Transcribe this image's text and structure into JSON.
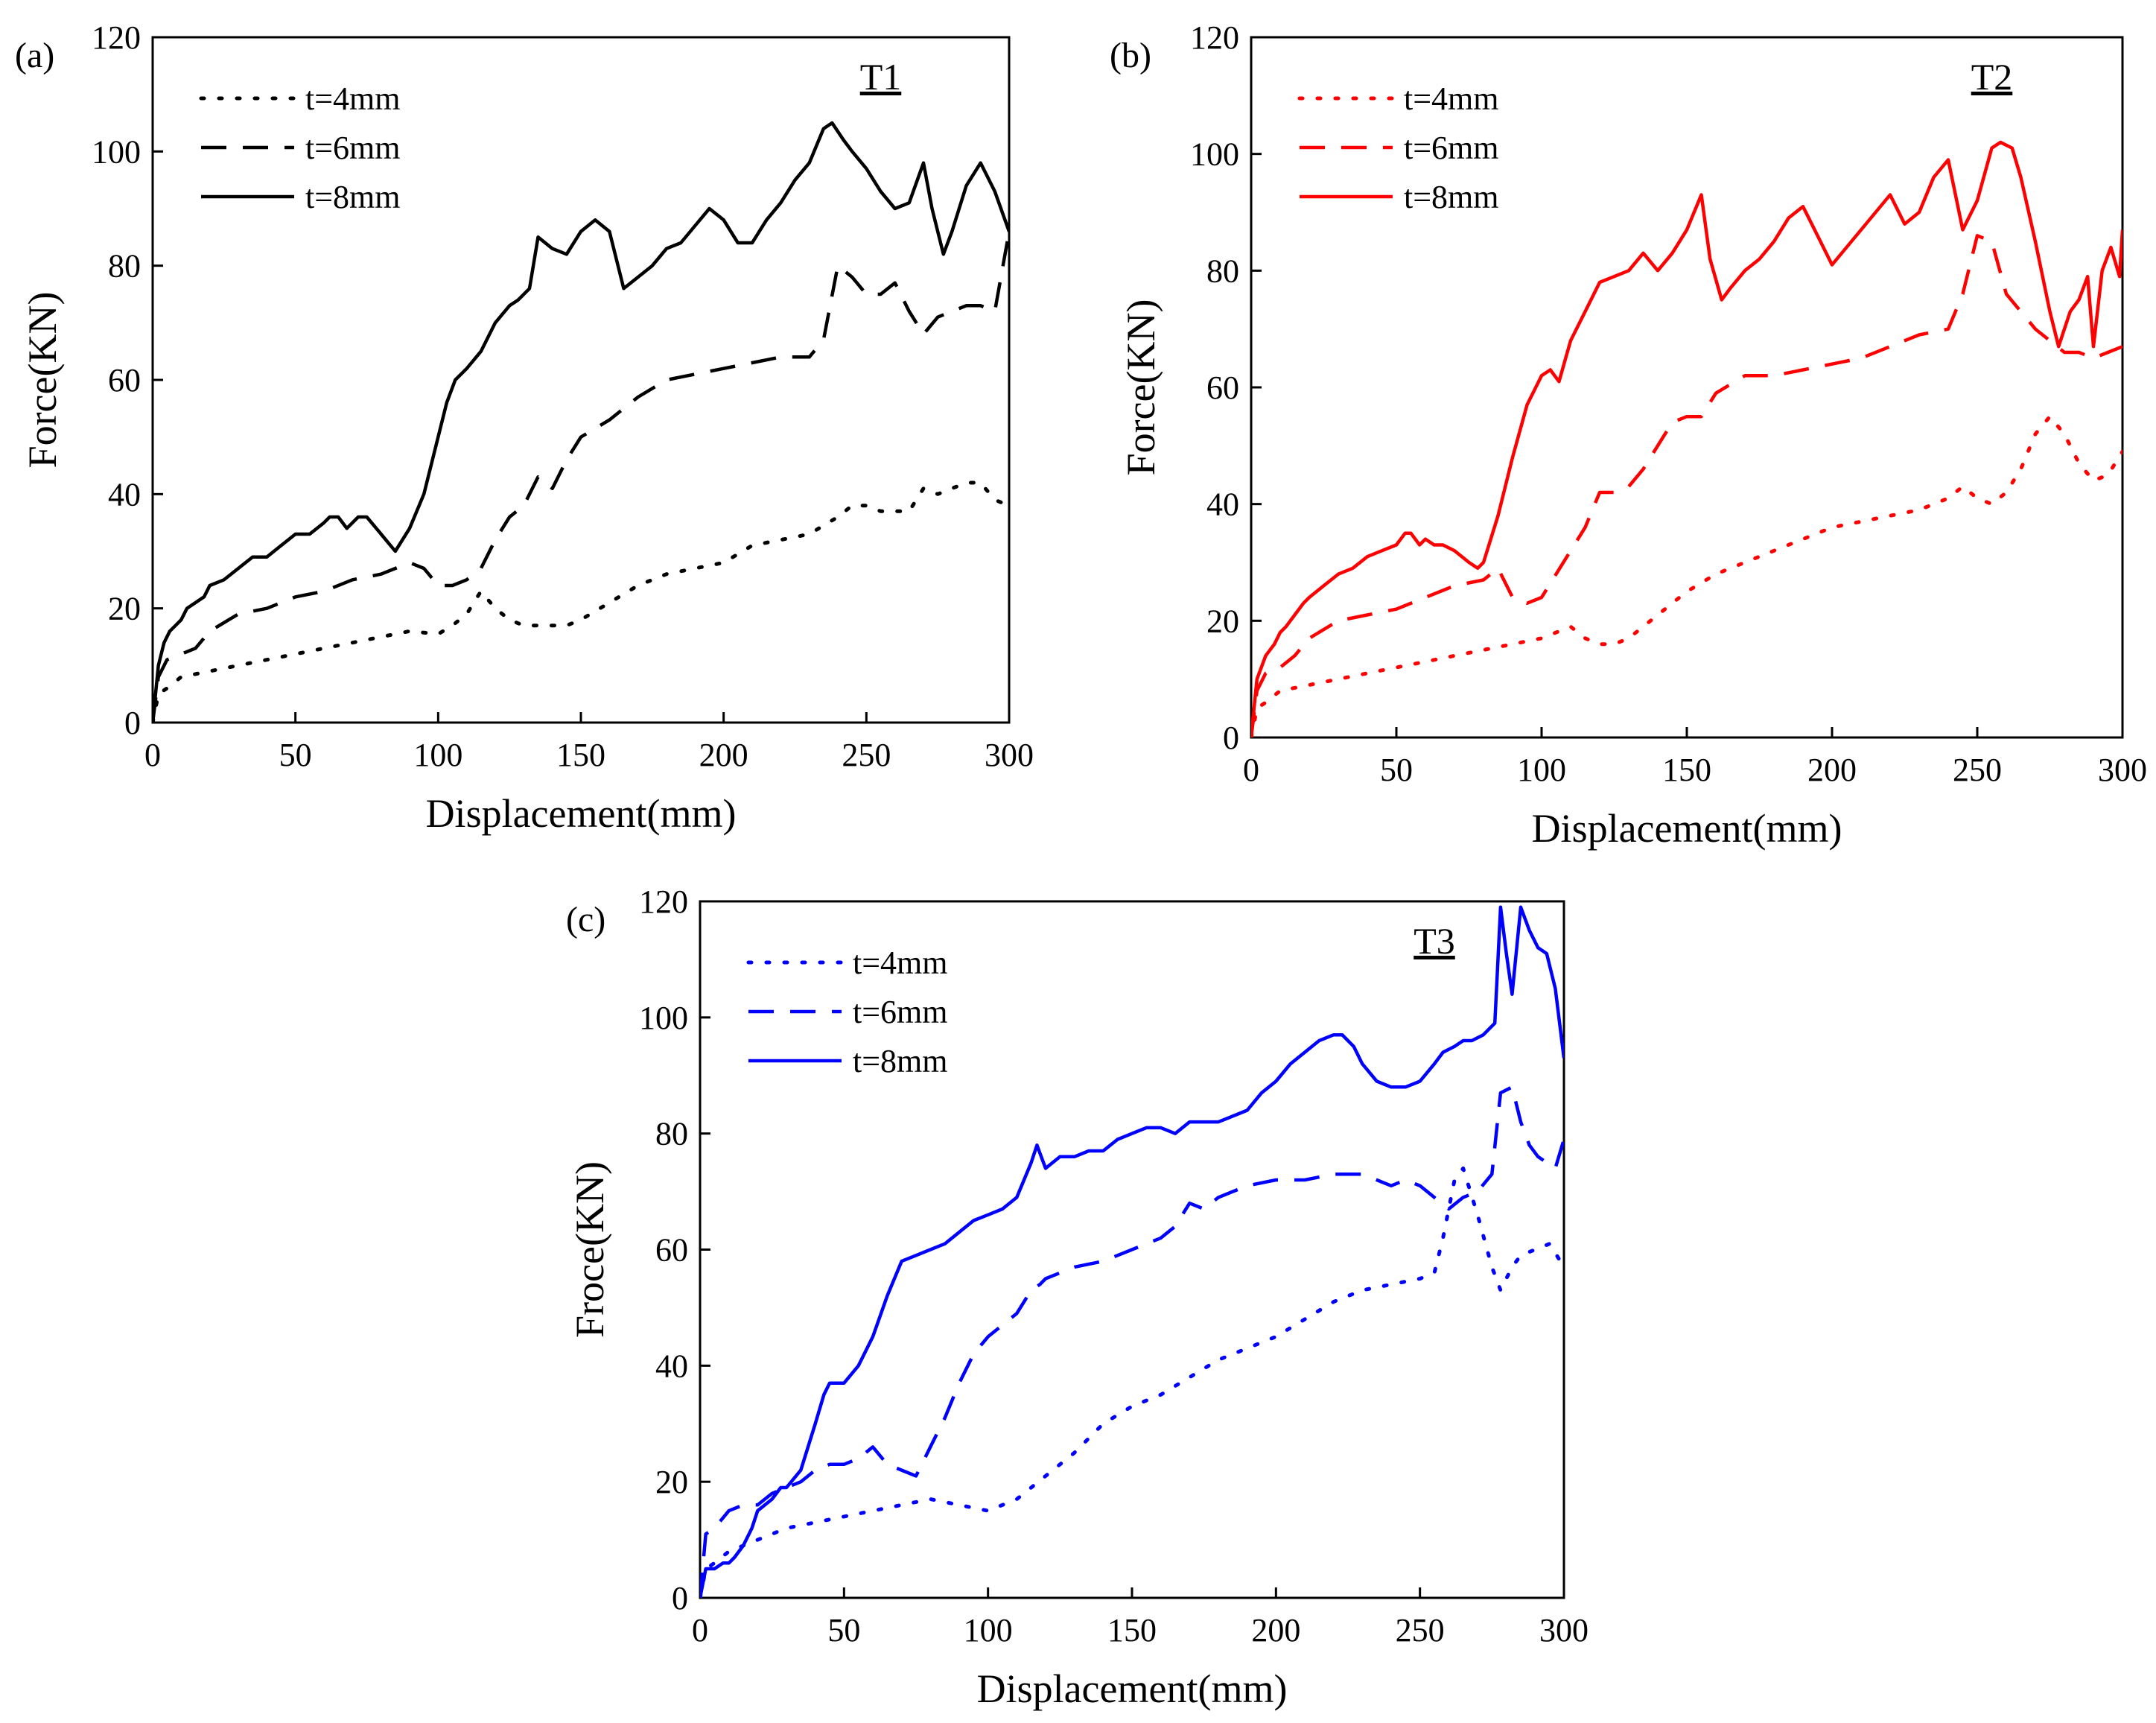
{
  "figure": {
    "legend_entries": [
      "t=4mm",
      "t=6mm",
      "t=8mm"
    ]
  },
  "chart_data": [
    {
      "type": "line",
      "panel_label": "(a)",
      "title": "T1",
      "xlabel": "Displacement(mm)",
      "ylabel": "Force(KN)",
      "xlim": [
        0,
        300
      ],
      "ylim": [
        0,
        120
      ],
      "xticks": [
        0,
        50,
        100,
        150,
        200,
        250,
        300
      ],
      "yticks": [
        0,
        20,
        40,
        60,
        80,
        100,
        120
      ],
      "color": "#000000",
      "series": [
        {
          "name": "t=4mm",
          "style": "dotted",
          "x": [
            0,
            2,
            5,
            10,
            20,
            30,
            40,
            50,
            60,
            70,
            80,
            90,
            100,
            105,
            110,
            115,
            120,
            125,
            130,
            135,
            140,
            145,
            150,
            160,
            170,
            180,
            190,
            200,
            210,
            220,
            230,
            240,
            245,
            250,
            255,
            260,
            265,
            270,
            275,
            280,
            285,
            290,
            295,
            300
          ],
          "y": [
            0,
            5,
            6,
            8,
            9,
            10,
            11,
            12,
            13,
            14,
            15,
            16,
            15.5,
            17,
            19,
            23,
            20,
            18,
            17,
            17,
            17,
            17,
            18,
            21,
            24,
            26,
            27,
            28,
            31,
            32,
            33,
            36,
            38,
            38,
            37,
            37,
            37,
            41,
            40,
            41,
            42,
            42,
            39,
            38
          ]
        },
        {
          "name": "t=6mm",
          "style": "dashed",
          "x": [
            0,
            2,
            5,
            10,
            15,
            20,
            30,
            40,
            50,
            60,
            70,
            80,
            90,
            95,
            100,
            105,
            110,
            115,
            120,
            125,
            130,
            135,
            140,
            145,
            150,
            160,
            170,
            180,
            190,
            200,
            210,
            220,
            230,
            235,
            240,
            245,
            250,
            255,
            260,
            265,
            270,
            275,
            280,
            285,
            290,
            295,
            300
          ],
          "y": [
            0,
            8,
            11,
            12,
            13,
            16,
            19,
            20,
            22,
            23,
            25,
            26,
            28,
            27,
            24,
            24,
            25,
            27,
            32,
            36,
            38,
            43,
            41,
            46,
            50,
            53,
            57,
            60,
            61,
            62,
            63,
            64,
            64,
            67,
            80,
            78,
            75,
            75,
            77,
            72,
            68,
            71,
            72,
            73,
            73,
            72,
            86
          ]
        },
        {
          "name": "t=8mm",
          "style": "solid",
          "x": [
            0,
            2,
            4,
            6,
            8,
            10,
            12,
            15,
            18,
            20,
            25,
            30,
            35,
            40,
            45,
            50,
            55,
            60,
            62,
            65,
            68,
            72,
            75,
            80,
            85,
            90,
            95,
            100,
            103,
            106,
            110,
            115,
            120,
            125,
            128,
            132,
            135,
            140,
            145,
            150,
            155,
            160,
            165,
            170,
            175,
            180,
            185,
            190,
            195,
            200,
            205,
            210,
            215,
            220,
            225,
            230,
            235,
            238,
            242,
            245,
            250,
            255,
            260,
            265,
            270,
            273,
            277,
            280,
            285,
            290,
            295,
            300
          ],
          "y": [
            0,
            10,
            14,
            16,
            17,
            18,
            20,
            21,
            22,
            24,
            25,
            27,
            29,
            29,
            31,
            33,
            33,
            35,
            36,
            36,
            34,
            36,
            36,
            33,
            30,
            34,
            40,
            50,
            56,
            60,
            62,
            65,
            70,
            73,
            74,
            76,
            85,
            83,
            82,
            86,
            88,
            86,
            76,
            78,
            80,
            83,
            84,
            87,
            90,
            88,
            84,
            84,
            88,
            91,
            95,
            98,
            104,
            105,
            102,
            100,
            97,
            93,
            90,
            91,
            98,
            90,
            82,
            86,
            94,
            98,
            93,
            86
          ]
        }
      ]
    },
    {
      "type": "line",
      "panel_label": "(b)",
      "title": "T2",
      "xlabel": "Displacement(mm)",
      "ylabel": "Force(KN)",
      "xlim": [
        0,
        300
      ],
      "ylim": [
        0,
        120
      ],
      "xticks": [
        0,
        50,
        100,
        150,
        200,
        250,
        300
      ],
      "yticks": [
        0,
        20,
        40,
        60,
        80,
        100,
        120
      ],
      "color": "#ff0000",
      "series": [
        {
          "name": "t=4mm",
          "style": "dotted",
          "x": [
            0,
            2,
            5,
            10,
            20,
            30,
            40,
            50,
            60,
            70,
            80,
            90,
            100,
            110,
            115,
            120,
            125,
            130,
            135,
            140,
            145,
            150,
            160,
            170,
            180,
            190,
            200,
            210,
            220,
            230,
            240,
            245,
            250,
            255,
            260,
            265,
            270,
            275,
            280,
            285,
            290,
            295,
            300
          ],
          "y": [
            0,
            5,
            6,
            8,
            9,
            10,
            11,
            12,
            13,
            14,
            15,
            16,
            17,
            19,
            17,
            16,
            16,
            17,
            19,
            21,
            23,
            25,
            28,
            30,
            32,
            34,
            36,
            37,
            38,
            39,
            41,
            43,
            41,
            40,
            42,
            46,
            52,
            55,
            52,
            47,
            44,
            45,
            49
          ]
        },
        {
          "name": "t=6mm",
          "style": "dashed",
          "x": [
            0,
            2,
            5,
            10,
            15,
            20,
            30,
            40,
            50,
            60,
            70,
            80,
            85,
            90,
            95,
            100,
            105,
            110,
            115,
            120,
            125,
            130,
            135,
            140,
            145,
            150,
            155,
            160,
            170,
            180,
            190,
            200,
            210,
            220,
            230,
            240,
            245,
            250,
            255,
            260,
            265,
            270,
            275,
            280,
            285,
            290,
            295,
            300
          ],
          "y": [
            0,
            8,
            11,
            12,
            14,
            17,
            20,
            21,
            22,
            24,
            26,
            27,
            29,
            24,
            23,
            24,
            28,
            32,
            36,
            42,
            42,
            43,
            46,
            50,
            54,
            55,
            55,
            59,
            62,
            62,
            63,
            64,
            65,
            67,
            69,
            70,
            76,
            86,
            85,
            76,
            73,
            70,
            68,
            66,
            66,
            65,
            66,
            67
          ]
        },
        {
          "name": "t=8mm",
          "style": "solid",
          "x": [
            0,
            2,
            5,
            8,
            10,
            12,
            15,
            18,
            20,
            25,
            30,
            35,
            40,
            45,
            50,
            53,
            55,
            58,
            60,
            63,
            66,
            70,
            75,
            78,
            80,
            85,
            90,
            95,
            100,
            103,
            106,
            110,
            115,
            120,
            125,
            130,
            135,
            140,
            145,
            150,
            155,
            158,
            162,
            165,
            170,
            175,
            180,
            185,
            190,
            195,
            200,
            205,
            210,
            215,
            220,
            225,
            230,
            235,
            240,
            245,
            250,
            255,
            258,
            262,
            265,
            270,
            275,
            278,
            282,
            285,
            288,
            290,
            293,
            296,
            299,
            300
          ],
          "y": [
            0,
            10,
            14,
            16,
            18,
            19,
            21,
            23,
            24,
            26,
            28,
            29,
            31,
            32,
            33,
            35,
            35,
            33,
            34,
            33,
            33,
            32,
            30,
            29,
            30,
            38,
            48,
            57,
            62,
            63,
            61,
            68,
            73,
            78,
            79,
            80,
            83,
            80,
            83,
            87,
            93,
            82,
            75,
            77,
            80,
            82,
            85,
            89,
            91,
            86,
            81,
            84,
            87,
            90,
            93,
            88,
            90,
            96,
            99,
            87,
            92,
            101,
            102,
            101,
            96,
            85,
            73,
            67,
            73,
            75,
            79,
            67,
            80,
            84,
            79,
            87
          ]
        }
      ]
    },
    {
      "type": "line",
      "panel_label": "(c)",
      "title": "T3",
      "xlabel": "Displacement(mm)",
      "ylabel": "Froce(KN)",
      "xlim": [
        0,
        300
      ],
      "ylim": [
        0,
        120
      ],
      "xticks": [
        0,
        50,
        100,
        150,
        200,
        250,
        300
      ],
      "yticks": [
        0,
        20,
        40,
        60,
        80,
        100,
        120
      ],
      "color": "#0000ff",
      "series": [
        {
          "name": "t=4mm",
          "style": "dotted",
          "x": [
            0,
            2,
            5,
            10,
            20,
            30,
            40,
            50,
            60,
            70,
            80,
            90,
            100,
            110,
            120,
            130,
            140,
            150,
            160,
            170,
            180,
            190,
            200,
            210,
            220,
            230,
            240,
            250,
            255,
            258,
            262,
            265,
            270,
            275,
            278,
            282,
            285,
            290,
            295,
            300
          ],
          "y": [
            0,
            5,
            6,
            8,
            10,
            12,
            13,
            14,
            15,
            16,
            17,
            16,
            15,
            17,
            21,
            25,
            30,
            33,
            35,
            38,
            41,
            43,
            45,
            48,
            51,
            53,
            54,
            55,
            56,
            62,
            72,
            74,
            66,
            57,
            53,
            57,
            59,
            60,
            61,
            57
          ]
        },
        {
          "name": "t=6mm",
          "style": "dashed",
          "x": [
            0,
            2,
            5,
            10,
            15,
            20,
            25,
            30,
            35,
            40,
            45,
            50,
            55,
            60,
            65,
            70,
            75,
            80,
            85,
            90,
            95,
            100,
            110,
            115,
            118,
            120,
            125,
            130,
            140,
            150,
            160,
            165,
            170,
            175,
            180,
            190,
            200,
            210,
            220,
            230,
            235,
            240,
            245,
            250,
            255,
            260,
            265,
            270,
            275,
            278,
            282,
            285,
            288,
            291,
            294,
            297,
            300
          ],
          "y": [
            0,
            11,
            12,
            15,
            16,
            16,
            18,
            19,
            20,
            22,
            23,
            23,
            24,
            26,
            23,
            22,
            21,
            26,
            31,
            37,
            42,
            45,
            49,
            53,
            54,
            55,
            56,
            57,
            58,
            60,
            62,
            64,
            68,
            67,
            69,
            71,
            72,
            72,
            73,
            73,
            72,
            71,
            72,
            71,
            69,
            67,
            69,
            70,
            73,
            87,
            88,
            82,
            78,
            76,
            75,
            74,
            79
          ]
        },
        {
          "name": "t=8mm",
          "style": "solid",
          "x": [
            0,
            2,
            5,
            8,
            10,
            12,
            15,
            18,
            20,
            25,
            28,
            30,
            35,
            40,
            43,
            45,
            50,
            55,
            60,
            65,
            70,
            75,
            80,
            85,
            90,
            95,
            100,
            105,
            110,
            115,
            117,
            120,
            125,
            130,
            135,
            140,
            145,
            150,
            155,
            160,
            165,
            170,
            175,
            180,
            190,
            195,
            200,
            205,
            210,
            215,
            220,
            223,
            227,
            230,
            235,
            240,
            245,
            250,
            255,
            258,
            262,
            265,
            268,
            272,
            276,
            278,
            280,
            282,
            285,
            288,
            291,
            294,
            297,
            300
          ],
          "y": [
            0,
            5,
            5,
            6,
            6,
            7,
            9,
            12,
            15,
            17,
            19,
            19,
            22,
            30,
            35,
            37,
            37,
            40,
            45,
            52,
            58,
            59,
            60,
            61,
            63,
            65,
            66,
            67,
            69,
            75,
            78,
            74,
            76,
            76,
            77,
            77,
            79,
            80,
            81,
            81,
            80,
            82,
            82,
            82,
            84,
            87,
            89,
            92,
            94,
            96,
            97,
            97,
            95,
            92,
            89,
            88,
            88,
            89,
            92,
            94,
            95,
            96,
            96,
            97,
            99,
            119,
            111,
            104,
            119,
            115,
            112,
            111,
            105,
            93
          ]
        }
      ]
    }
  ]
}
